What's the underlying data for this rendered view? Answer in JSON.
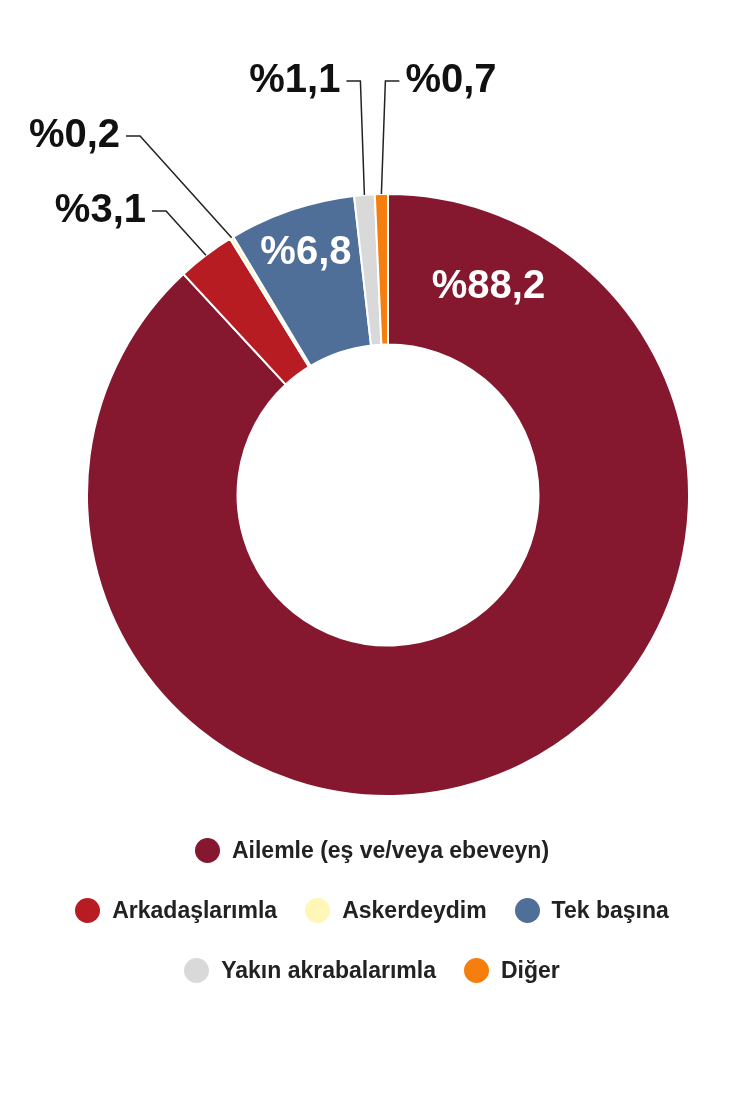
{
  "chart_data": {
    "type": "donut",
    "categories": [
      "Ailemle (eş ve/veya ebeveyn)",
      "Arkadaşlarımla",
      "Askerdeydim",
      "Tek başına",
      "Yakın akrabalarımla",
      "Diğer"
    ],
    "values": [
      88.2,
      3.1,
      0.2,
      6.8,
      1.1,
      0.7
    ],
    "value_labels": [
      "%88,2",
      "%3,1",
      "%0,2",
      "%6,8",
      "%1,1",
      "%0,7"
    ],
    "colors": [
      "#85172e",
      "#b81c23",
      "#fff6b8",
      "#4f6e98",
      "#d9d9d9",
      "#f57e0e"
    ],
    "legend": "bottom"
  }
}
